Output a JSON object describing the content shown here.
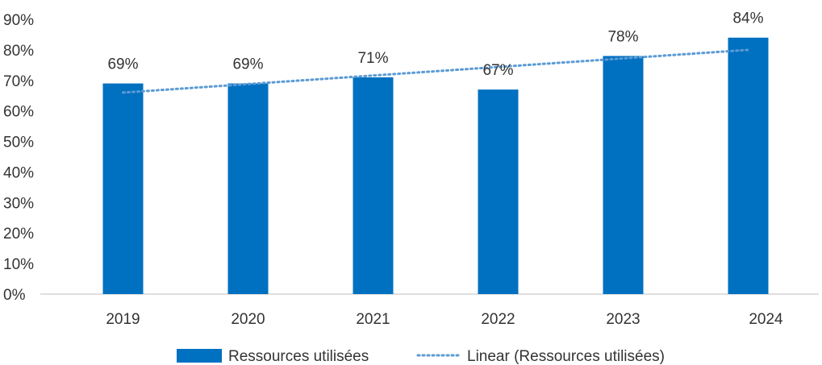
{
  "chart_data": {
    "type": "bar",
    "categories": [
      "2019",
      "2020",
      "2021",
      "2022",
      "2023",
      "2024"
    ],
    "series": [
      {
        "name": "Ressources utilisées",
        "values": [
          69,
          69,
          71,
          67,
          78,
          84
        ],
        "color": "#0070C0"
      }
    ],
    "data_labels": [
      "69%",
      "69%",
      "71%",
      "67%",
      "78%",
      "84%"
    ],
    "trendline": {
      "name": "Linear (Ressources utilisées)",
      "type": "linear",
      "color": "#5B9BD5",
      "style": "dotted"
    },
    "y_ticks": [
      "0%",
      "10%",
      "20%",
      "30%",
      "40%",
      "50%",
      "60%",
      "70%",
      "80%",
      "90%"
    ],
    "ylim": [
      0,
      90
    ],
    "grid": false,
    "legend_position": "bottom",
    "title": "",
    "xlabel": "",
    "ylabel": ""
  }
}
